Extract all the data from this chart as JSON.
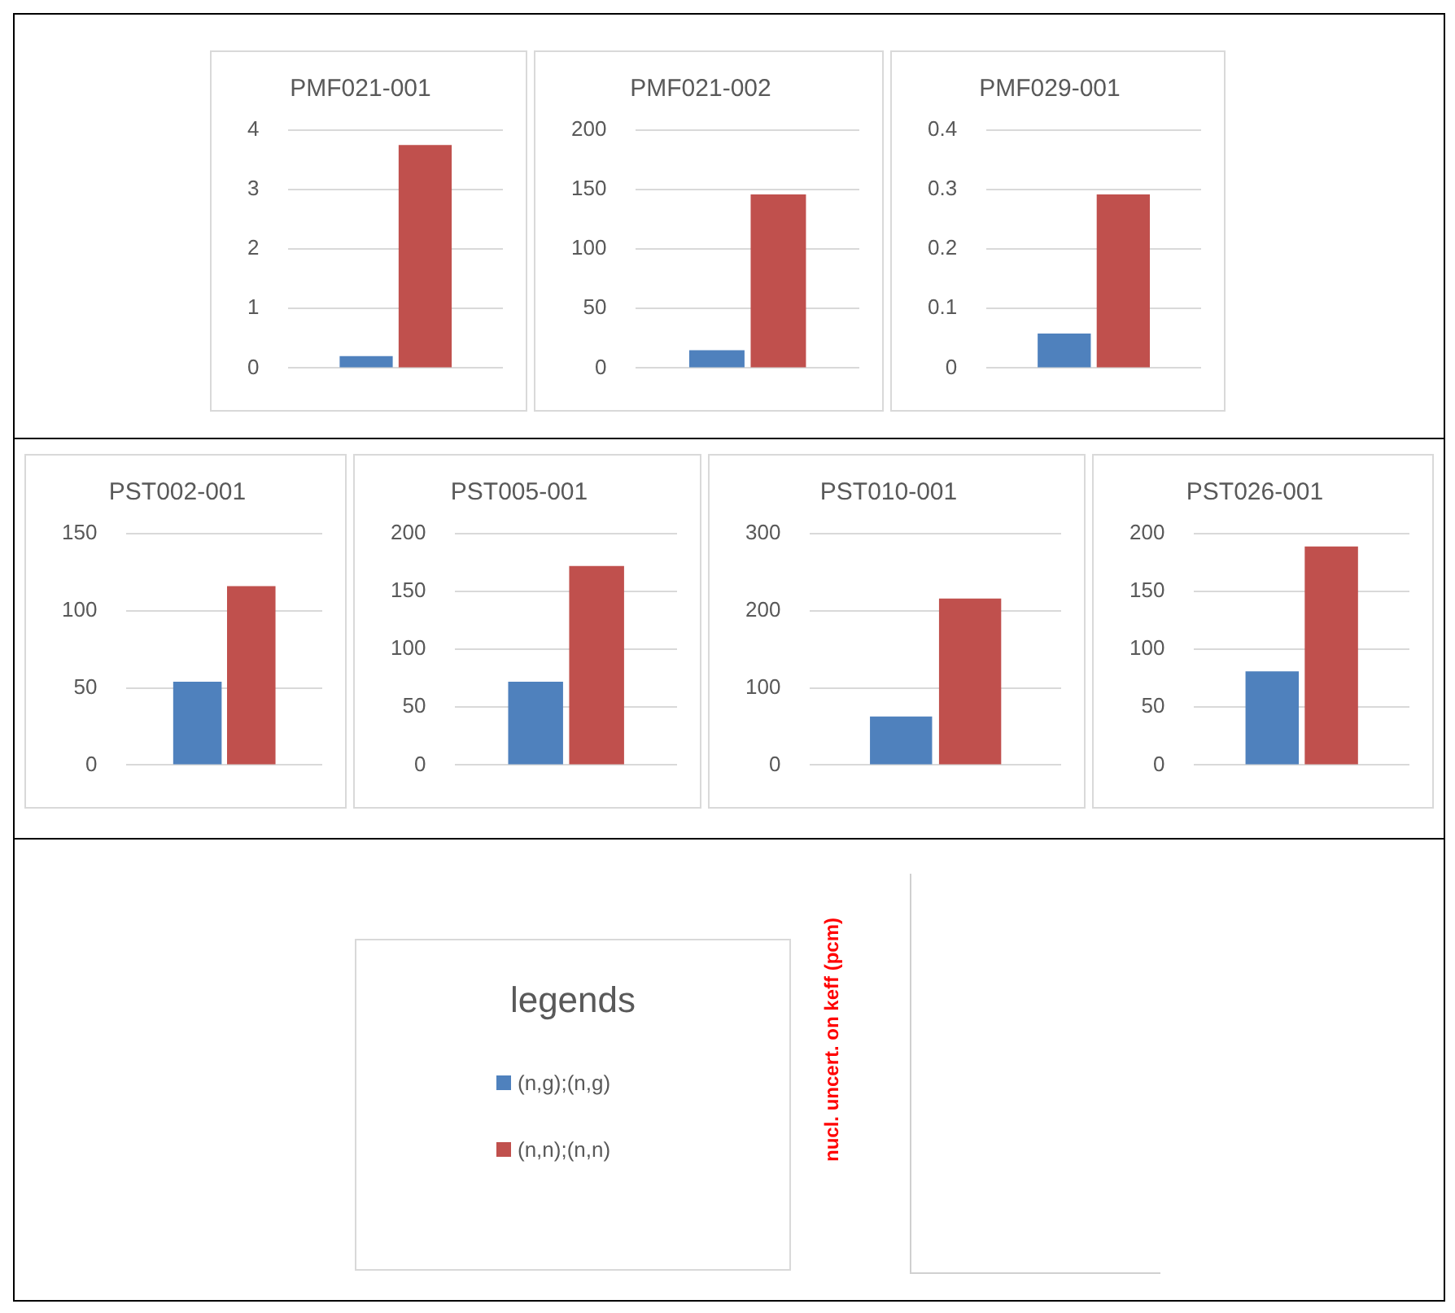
{
  "chart_data": [
    {
      "type": "bar",
      "title": "PMF021-001",
      "categories": [
        null
      ],
      "series": [
        {
          "color": "#4f81bd",
          "values": [
            0.2
          ]
        },
        {
          "color": "#c0504d",
          "values": [
            3.75
          ]
        }
      ],
      "ylim": [
        0,
        4
      ],
      "yticks": [
        0,
        1,
        2,
        3,
        4
      ],
      "grid": "y"
    },
    {
      "type": "bar",
      "title": "PMF021-002",
      "categories": [
        null
      ],
      "series": [
        {
          "color": "#4f81bd",
          "values": [
            15
          ]
        },
        {
          "color": "#c0504d",
          "values": [
            146
          ]
        }
      ],
      "ylim": [
        0,
        200
      ],
      "yticks": [
        0,
        50,
        100,
        150,
        200
      ],
      "grid": "y"
    },
    {
      "type": "bar",
      "title": "PMF029-001",
      "categories": [
        null
      ],
      "series": [
        {
          "color": "#4f81bd",
          "values": [
            0.058
          ]
        },
        {
          "color": "#c0504d",
          "values": [
            0.292
          ]
        }
      ],
      "ylim": [
        0,
        0.4
      ],
      "yticks": [
        0,
        0.1,
        0.2,
        0.3,
        0.4
      ],
      "grid": "y"
    },
    {
      "type": "bar",
      "title": "PST002-001",
      "categories": [
        null
      ],
      "series": [
        {
          "color": "#4f81bd",
          "values": [
            54
          ]
        },
        {
          "color": "#c0504d",
          "values": [
            116
          ]
        }
      ],
      "ylim": [
        0,
        150
      ],
      "yticks": [
        0,
        50,
        100,
        150
      ],
      "grid": "y"
    },
    {
      "type": "bar",
      "title": "PST005-001",
      "categories": [
        null
      ],
      "series": [
        {
          "color": "#4f81bd",
          "values": [
            72
          ]
        },
        {
          "color": "#c0504d",
          "values": [
            172
          ]
        }
      ],
      "ylim": [
        0,
        200
      ],
      "yticks": [
        0,
        50,
        100,
        150,
        200
      ],
      "grid": "y"
    },
    {
      "type": "bar",
      "title": "PST010-001",
      "categories": [
        null
      ],
      "series": [
        {
          "color": "#4f81bd",
          "values": [
            63
          ]
        },
        {
          "color": "#c0504d",
          "values": [
            216
          ]
        }
      ],
      "ylim": [
        0,
        300
      ],
      "yticks": [
        0,
        100,
        200,
        300
      ],
      "grid": "y"
    },
    {
      "type": "bar",
      "title": "PST026-001",
      "categories": [
        null
      ],
      "series": [
        {
          "color": "#4f81bd",
          "values": [
            81
          ]
        },
        {
          "color": "#c0504d",
          "values": [
            189
          ]
        }
      ],
      "ylim": [
        0,
        200
      ],
      "yticks": [
        0,
        50,
        100,
        150,
        200
      ],
      "grid": "y"
    },
    {
      "type": "other",
      "title": "legends",
      "series": [
        {
          "name": "(n,g);(n,g)",
          "color": "#4f81bd"
        },
        {
          "name": "(n,n);(n,n)",
          "color": "#c0504d"
        }
      ]
    },
    {
      "type": "other",
      "ylabel": "nucl. uncert. on keff (pcm)"
    }
  ]
}
